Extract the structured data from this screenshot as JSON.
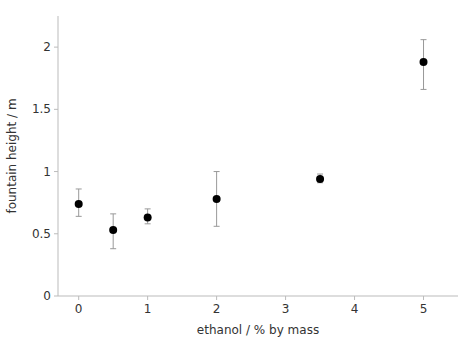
{
  "chart_data": {
    "type": "scatter",
    "x": [
      0,
      0.5,
      1,
      2,
      3.5,
      5
    ],
    "values": [
      0.74,
      0.53,
      0.63,
      0.78,
      0.94,
      1.88
    ],
    "error_upper": [
      0.12,
      0.13,
      0.07,
      0.22,
      0.04,
      0.18
    ],
    "error_lower": [
      0.1,
      0.15,
      0.05,
      0.22,
      0.03,
      0.22
    ],
    "xlabel": "ethanol / % by mass",
    "ylabel": "fountain height / m",
    "xlim": [
      -0.3,
      5.5
    ],
    "ylim": [
      0,
      2.25
    ],
    "xticks": [
      0,
      1,
      2,
      3,
      4,
      5
    ],
    "yticks": [
      0,
      0.5,
      1,
      1.5,
      2
    ],
    "grid": false,
    "color": "#000000"
  }
}
